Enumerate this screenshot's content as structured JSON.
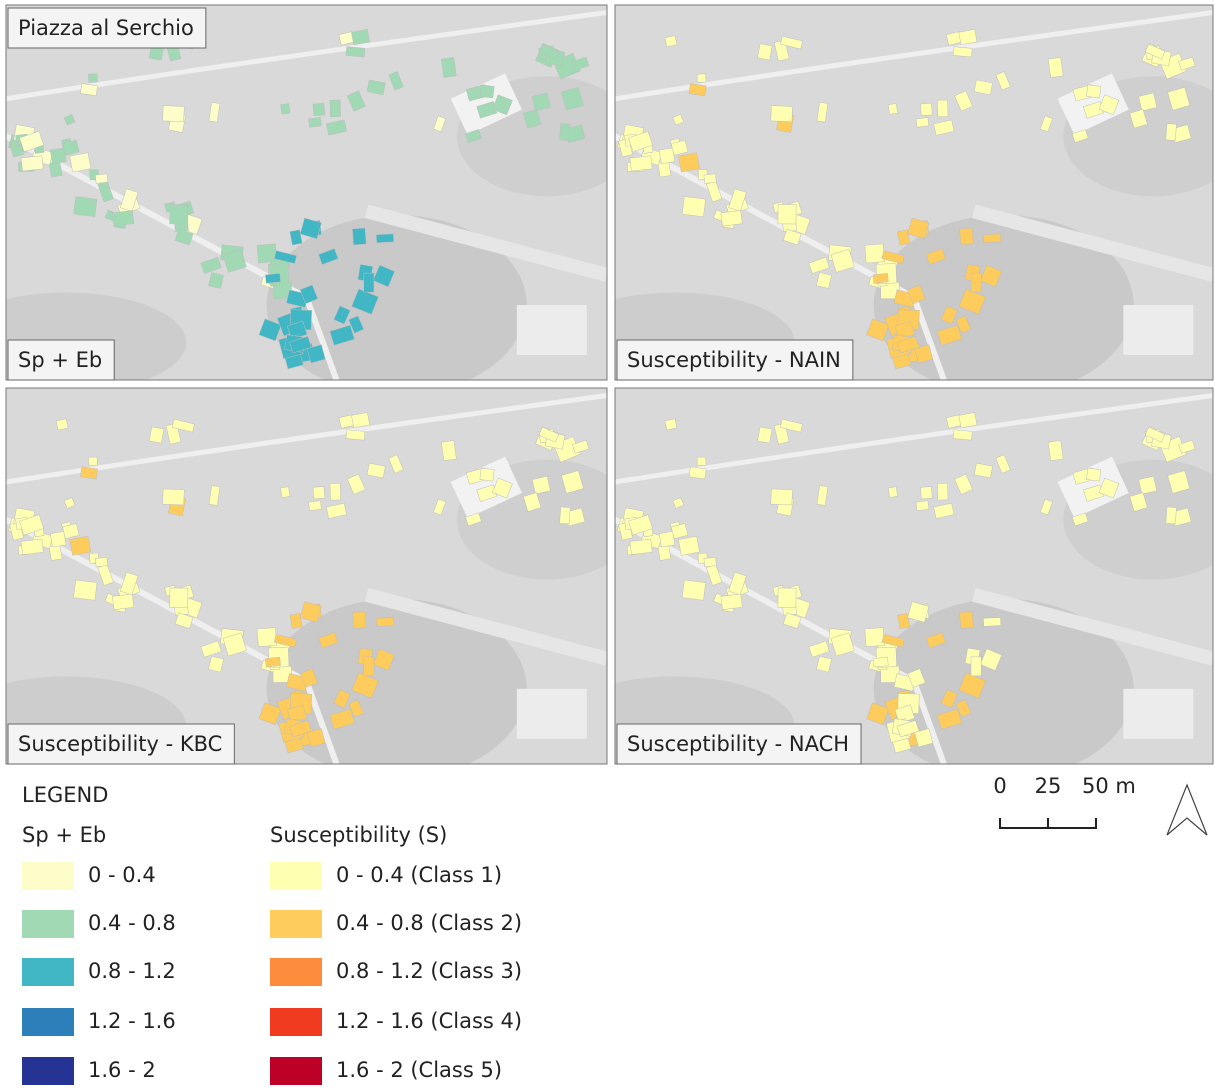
{
  "panels": [
    {
      "title": "Piazza al Serchio",
      "label": "Sp + Eb"
    },
    {
      "label": "Susceptibility - NAIN"
    },
    {
      "label": "Susceptibility - KBC"
    },
    {
      "label": "Susceptibility - NACH"
    }
  ],
  "scale_bar": {
    "ticks": [
      "0",
      "25",
      "50 m"
    ]
  },
  "legend": {
    "title": "LEGEND",
    "groups": [
      {
        "title": "Sp + Eb",
        "items": [
          {
            "label": "0 - 0.4",
            "color": "#fdfdc9"
          },
          {
            "label": "0.4 - 0.8",
            "color": "#a1d9b4"
          },
          {
            "label": "0.8 - 1.2",
            "color": "#41b6c4"
          },
          {
            "label": "1.2 - 1.6",
            "color": "#2c7fb8"
          },
          {
            "label": "1.6 - 2",
            "color": "#253494"
          }
        ]
      },
      {
        "title": "Susceptibility (S)",
        "items": [
          {
            "label": "0 - 0.4 (Class 1)",
            "color": "#ffffb2"
          },
          {
            "label": "0.4 - 0.8 (Class 2)",
            "color": "#fecc5c"
          },
          {
            "label": "0.8 - 1.2 (Class 3)",
            "color": "#fd8d3c"
          },
          {
            "label": "1.2 - 1.6 (Class 4)",
            "color": "#f03b20"
          },
          {
            "label": "1.6 - 2 (Class 5)",
            "color": "#bd0026"
          }
        ]
      }
    ]
  }
}
